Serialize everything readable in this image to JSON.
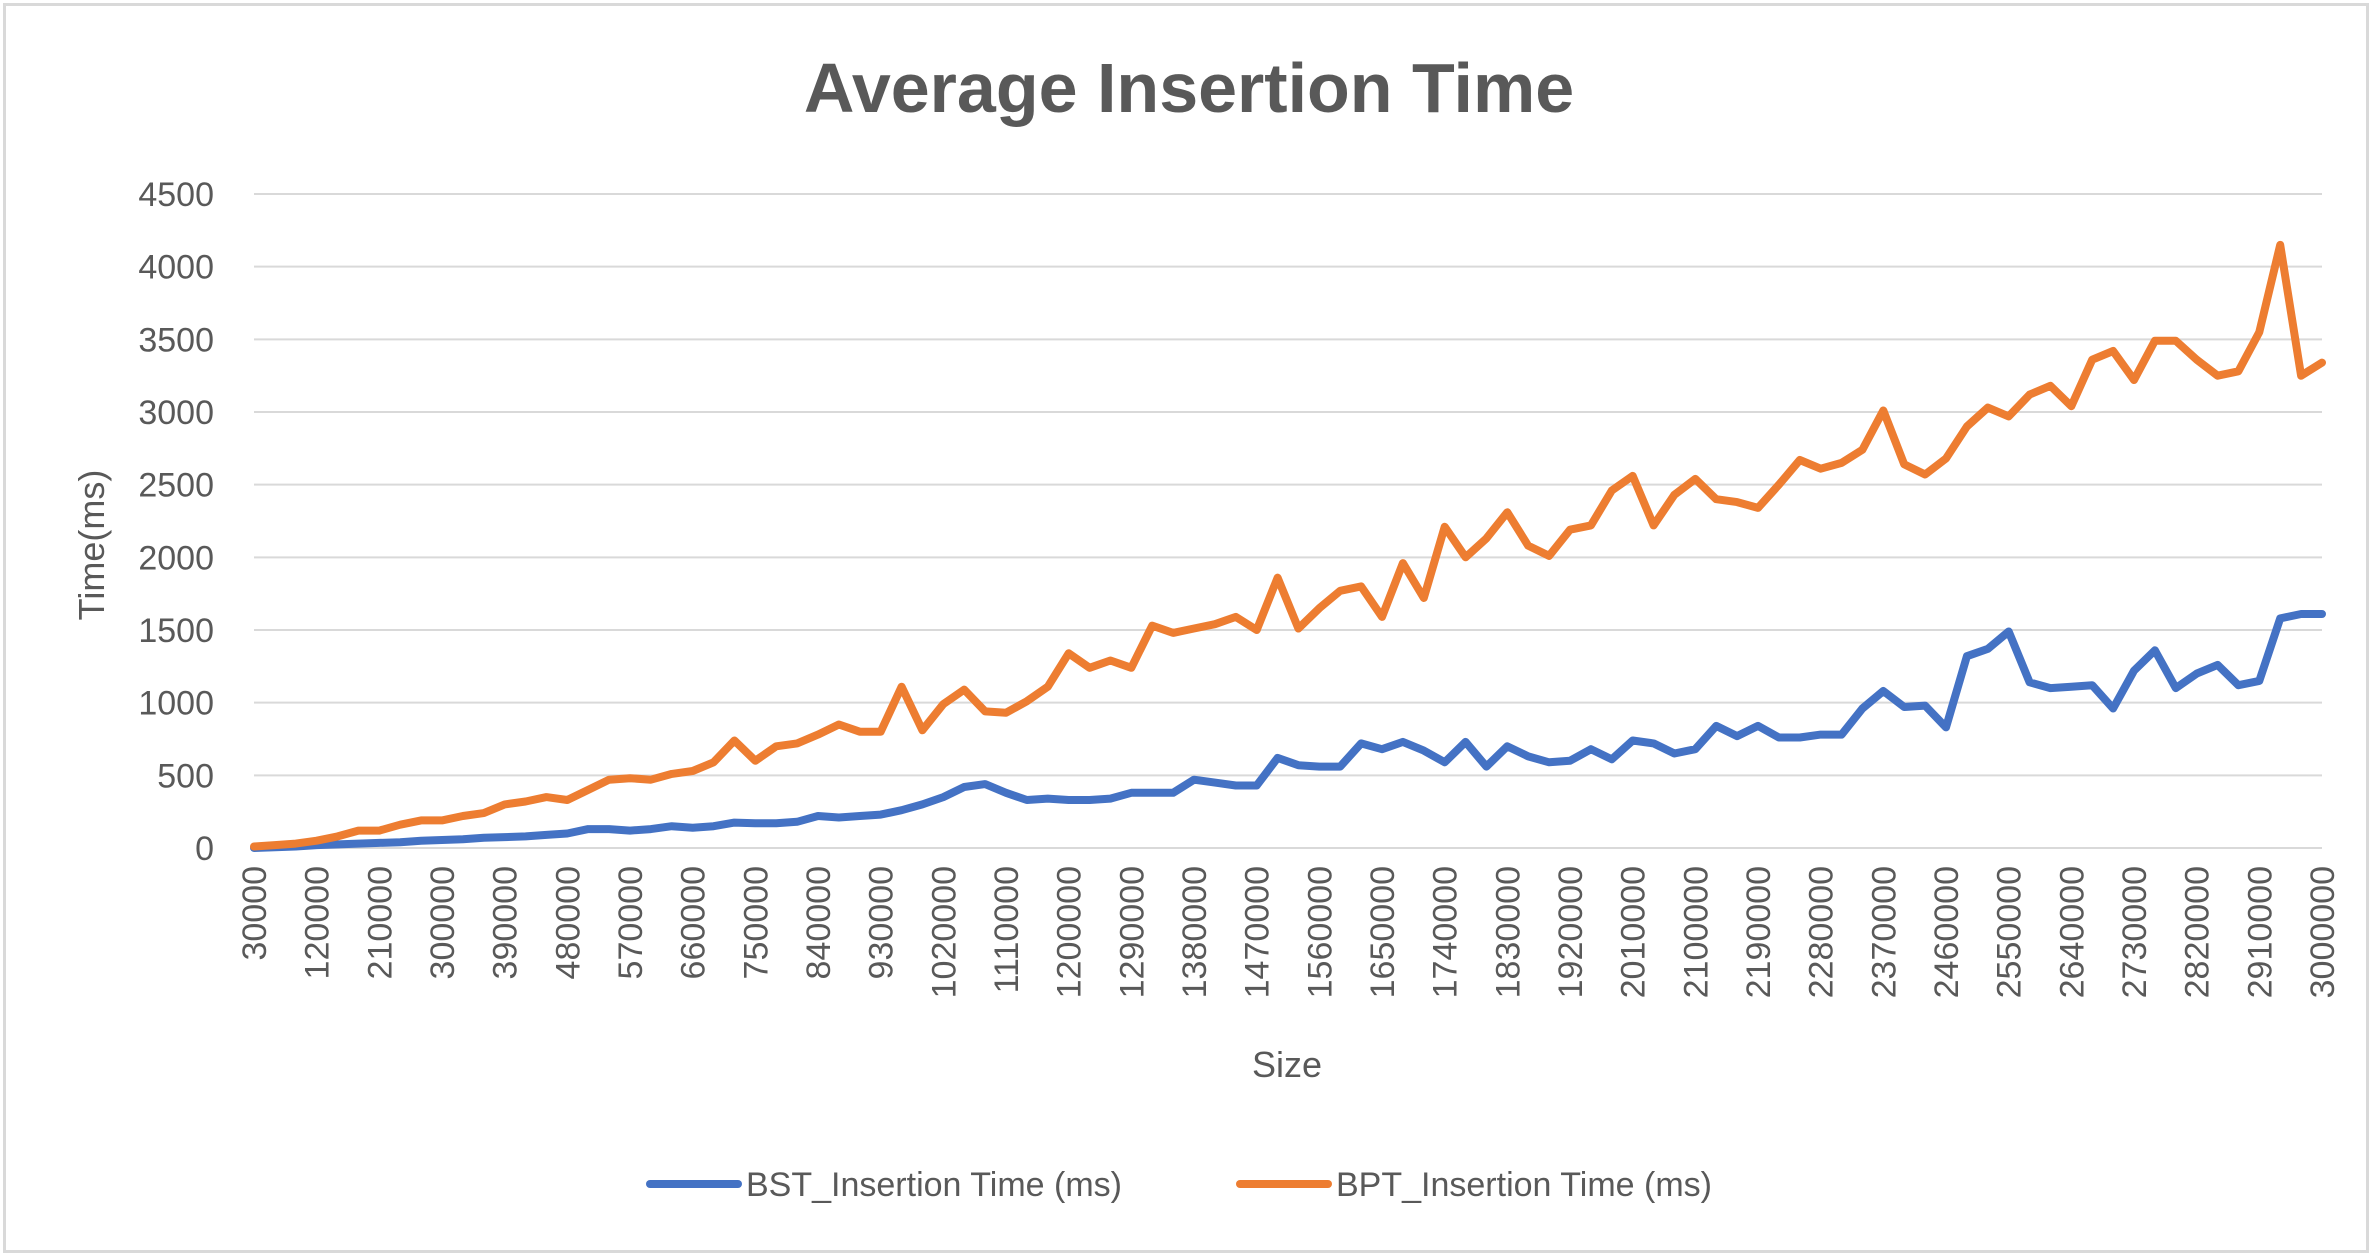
{
  "chart_data": {
    "type": "line",
    "title": "Average Insertion Time",
    "xlabel": "Size",
    "ylabel": "Time(ms)",
    "ylim": [
      0,
      4500
    ],
    "yticks": [
      0,
      500,
      1000,
      1500,
      2000,
      2500,
      3000,
      3500,
      4000,
      4500
    ],
    "x": [
      30000,
      60000,
      90000,
      120000,
      150000,
      180000,
      210000,
      240000,
      270000,
      300000,
      330000,
      360000,
      390000,
      420000,
      450000,
      480000,
      510000,
      540000,
      570000,
      600000,
      630000,
      660000,
      690000,
      720000,
      750000,
      780000,
      810000,
      840000,
      870000,
      900000,
      930000,
      960000,
      990000,
      1020000,
      1050000,
      1080000,
      1110000,
      1140000,
      1170000,
      1200000,
      1230000,
      1260000,
      1290000,
      1320000,
      1350000,
      1380000,
      1410000,
      1440000,
      1470000,
      1500000,
      1530000,
      1560000,
      1590000,
      1620000,
      1650000,
      1680000,
      1710000,
      1740000,
      1770000,
      1800000,
      1830000,
      1860000,
      1890000,
      1920000,
      1950000,
      1980000,
      2010000,
      2040000,
      2070000,
      2100000,
      2130000,
      2160000,
      2190000,
      2220000,
      2250000,
      2280000,
      2310000,
      2340000,
      2370000,
      2400000,
      2430000,
      2460000,
      2490000,
      2520000,
      2550000,
      2580000,
      2610000,
      2640000,
      2670000,
      2700000,
      2730000,
      2760000,
      2790000,
      2820000,
      2850000,
      2880000,
      2910000,
      2940000,
      2970000,
      3000000
    ],
    "xtick_labels": [
      "30000",
      "120000",
      "210000",
      "300000",
      "390000",
      "480000",
      "570000",
      "660000",
      "750000",
      "840000",
      "930000",
      "1020000",
      "1110000",
      "1200000",
      "1290000",
      "1380000",
      "1470000",
      "1560000",
      "1650000",
      "1740000",
      "1830000",
      "1920000",
      "2010000",
      "2100000",
      "2190000",
      "2280000",
      "2370000",
      "2460000",
      "2550000",
      "2640000",
      "2730000",
      "2820000",
      "2910000",
      "3000000"
    ],
    "grid": true,
    "legend_position": "bottom",
    "series": [
      {
        "name": "BST_Insertion Time (ms)",
        "color": "#4472c4",
        "values": [
          0,
          5,
          10,
          20,
          25,
          30,
          35,
          40,
          50,
          55,
          60,
          70,
          75,
          80,
          90,
          100,
          130,
          130,
          120,
          130,
          150,
          140,
          150,
          175,
          170,
          170,
          180,
          220,
          210,
          220,
          230,
          260,
          300,
          350,
          420,
          440,
          380,
          330,
          340,
          330,
          330,
          340,
          380,
          380,
          380,
          470,
          450,
          430,
          430,
          620,
          570,
          560,
          560,
          720,
          680,
          730,
          670,
          590,
          730,
          560,
          700,
          630,
          590,
          600,
          680,
          610,
          740,
          720,
          650,
          680,
          840,
          770,
          840,
          760,
          760,
          780,
          780,
          960,
          1080,
          970,
          980,
          830,
          1320,
          1370,
          1490,
          1140,
          1100,
          1110,
          1120,
          960,
          1220,
          1360,
          1100,
          1200,
          1260,
          1120,
          1150,
          1580,
          1610,
          1610
        ]
      },
      {
        "name": "BPT_Insertion Time (ms)",
        "color": "#ed7d31",
        "values": [
          10,
          20,
          30,
          50,
          80,
          120,
          120,
          160,
          190,
          190,
          220,
          240,
          300,
          320,
          350,
          330,
          400,
          470,
          480,
          470,
          510,
          530,
          590,
          740,
          600,
          700,
          720,
          780,
          850,
          800,
          800,
          1110,
          810,
          990,
          1090,
          940,
          930,
          1010,
          1110,
          1340,
          1240,
          1290,
          1240,
          1530,
          1480,
          1510,
          1540,
          1590,
          1500,
          1860,
          1510,
          1650,
          1770,
          1800,
          1590,
          1960,
          1720,
          2210,
          2000,
          2130,
          2310,
          2080,
          2010,
          2190,
          2220,
          2460,
          2560,
          2220,
          2430,
          2540,
          2400,
          2380,
          2340,
          2500,
          2670,
          2610,
          2650,
          2740,
          3010,
          2640,
          2570,
          2680,
          2900,
          3030,
          2970,
          3120,
          3180,
          3040,
          3360,
          3420,
          3220,
          3490,
          3490,
          3360,
          3250,
          3280,
          3550,
          4150,
          3250,
          3340
        ]
      }
    ]
  }
}
